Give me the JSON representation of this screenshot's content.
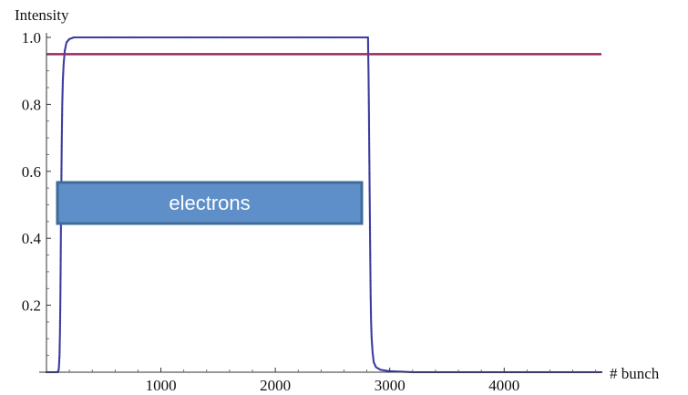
{
  "chart_data": {
    "type": "scatter",
    "ylabel": "Intensity",
    "xlabel": "# bunch",
    "xlim": [
      0,
      4850
    ],
    "ylim": [
      0,
      1.0
    ],
    "x_ticks": [
      {
        "value": 1000,
        "label": "1000"
      },
      {
        "value": 2000,
        "label": "2000"
      },
      {
        "value": 3000,
        "label": "3000"
      },
      {
        "value": 4000,
        "label": "4000"
      }
    ],
    "y_ticks": [
      {
        "value": 0.2,
        "label": "0.2"
      },
      {
        "value": 0.4,
        "label": "0.4"
      },
      {
        "value": 0.6,
        "label": "0.6"
      },
      {
        "value": 0.8,
        "label": "0.8"
      },
      {
        "value": 1.0,
        "label": "1.0"
      }
    ],
    "series": [
      {
        "style": "dotted",
        "color": "#3b3ba0",
        "points": [
          [
            0,
            0.0
          ],
          [
            100,
            0.0
          ],
          [
            108,
            0.01
          ],
          [
            114,
            0.05
          ],
          [
            118,
            0.12
          ],
          [
            121,
            0.2
          ],
          [
            124,
            0.32
          ],
          [
            126,
            0.42
          ],
          [
            128,
            0.5
          ],
          [
            131,
            0.6
          ],
          [
            134,
            0.7
          ],
          [
            138,
            0.8
          ],
          [
            143,
            0.87
          ],
          [
            150,
            0.92
          ],
          [
            160,
            0.96
          ],
          [
            175,
            0.985
          ],
          [
            200,
            0.995
          ],
          [
            240,
            1.0
          ],
          [
            2810,
            1.0
          ],
          [
            2812,
            0.95
          ],
          [
            2815,
            0.88
          ],
          [
            2818,
            0.78
          ],
          [
            2821,
            0.66
          ],
          [
            2824,
            0.55
          ],
          [
            2827,
            0.44
          ],
          [
            2830,
            0.33
          ],
          [
            2833,
            0.23
          ],
          [
            2837,
            0.15
          ],
          [
            2842,
            0.1
          ],
          [
            2850,
            0.06
          ],
          [
            2860,
            0.03
          ],
          [
            2880,
            0.015
          ],
          [
            2920,
            0.007
          ],
          [
            3000,
            0.003
          ],
          [
            3200,
            0.0
          ],
          [
            4850,
            0.0
          ]
        ]
      },
      {
        "style": "line",
        "color": "#9c2a66",
        "points": [
          [
            0,
            0.95
          ],
          [
            4850,
            0.95
          ]
        ]
      }
    ],
    "annotations": [
      {
        "text": "electrons",
        "fill": "#5e8fc8",
        "border": "#3f6b9a"
      }
    ]
  }
}
